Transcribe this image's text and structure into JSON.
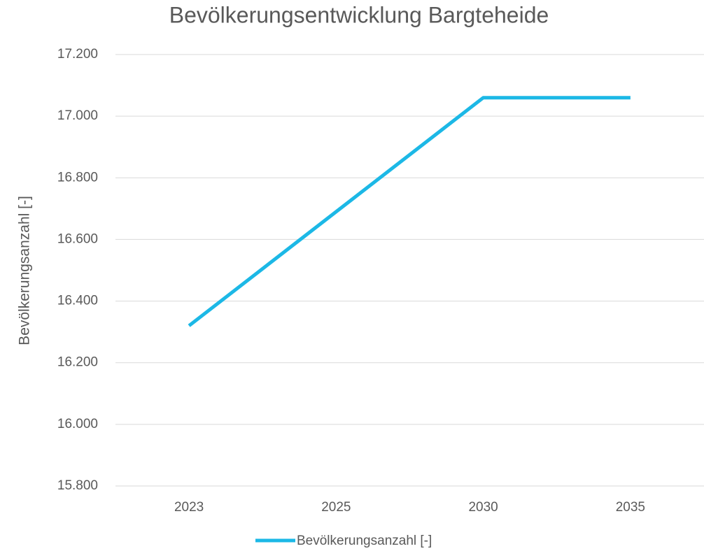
{
  "chart_data": {
    "type": "line",
    "title": "Bevölkerungsentwicklung Bargteheide",
    "y_label": "Bevölkerungsanzahl [-]",
    "categories": [
      "2023",
      "2025",
      "2030",
      "2035"
    ],
    "series": [
      {
        "name": "Bevölkerungsanzahl [-]",
        "color": "#1cb8e6",
        "values": [
          16320,
          16690,
          17060,
          17060
        ]
      }
    ],
    "ylim": [
      15800,
      17200
    ],
    "yticks": [
      {
        "value": 15800,
        "label": "15.800"
      },
      {
        "value": 16000,
        "label": "16.000"
      },
      {
        "value": 16200,
        "label": "16.200"
      },
      {
        "value": 16400,
        "label": "16.400"
      },
      {
        "value": 16600,
        "label": "16.600"
      },
      {
        "value": 16800,
        "label": "16.800"
      },
      {
        "value": 17000,
        "label": "17.000"
      },
      {
        "value": 17200,
        "label": "17.200"
      }
    ],
    "grid": true,
    "legend": "bottom"
  }
}
